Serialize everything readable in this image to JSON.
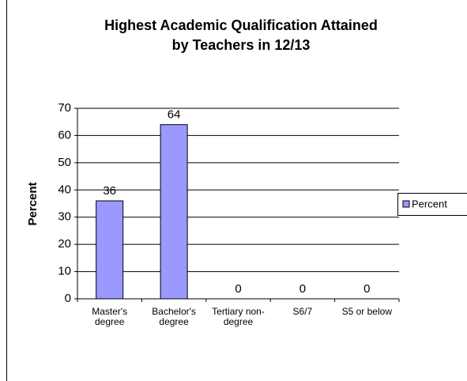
{
  "chart_data": {
    "type": "bar",
    "title": [
      "Highest Academic Qualification Attained",
      "by Teachers in 12/13"
    ],
    "ylabel": "Percent",
    "categories": [
      "Master's degree",
      "Bachelor's degree",
      "Tertiary non-degree",
      "S6/7",
      "S5 or below"
    ],
    "series": [
      {
        "name": "Percent",
        "color": "#9999ff",
        "values": [
          36,
          64,
          0,
          0,
          0
        ]
      }
    ],
    "ylim": [
      0,
      70
    ],
    "yticks": [
      0,
      10,
      20,
      30,
      40,
      50,
      60,
      70
    ],
    "grid": true,
    "legend": "right"
  }
}
